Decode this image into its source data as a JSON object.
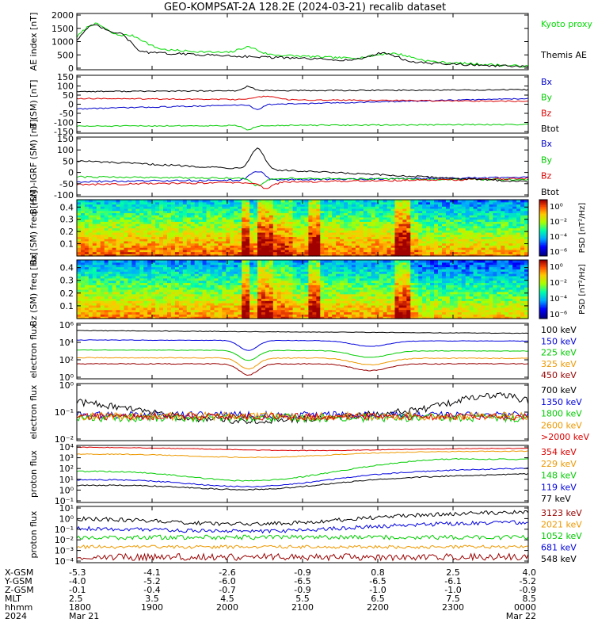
{
  "title": "GEO-KOMPSAT-2A 128.2E (2024-03-21) recalib dataset",
  "time_axis": {
    "rows": [
      {
        "label": "X-GSM",
        "values": [
          "-5.3",
          "-4.1",
          "-2.6",
          "-0.9",
          "0.8",
          "2.5",
          "4.0"
        ]
      },
      {
        "label": "Y-GSM",
        "values": [
          "-4.0",
          "-5.2",
          "-6.0",
          "-6.5",
          "-6.5",
          "-6.1",
          "-5.2"
        ]
      },
      {
        "label": "Z-GSM",
        "values": [
          "-0.1",
          "-0.4",
          "-0.7",
          "-0.9",
          "-1.0",
          "-1.0",
          "-0.9"
        ]
      },
      {
        "label": "MLT",
        "values": [
          "2.5",
          "3.5",
          "4.5",
          "5.5",
          "6.5",
          "7.5",
          "8.5"
        ]
      },
      {
        "label": "hhmm",
        "values": [
          "1800",
          "1900",
          "2000",
          "2100",
          "2200",
          "2300",
          "0000"
        ]
      },
      {
        "label": "2024",
        "values": [
          "Mar 21",
          "",
          "",
          "",
          "",
          "",
          "Mar 22"
        ]
      }
    ]
  },
  "chart_data": [
    {
      "type": "line",
      "ylabel": "AE index [nT]",
      "yticks": [
        "0",
        "500",
        "1000",
        "1500",
        "2000"
      ],
      "series": [
        {
          "name": "Kyoto proxy AE",
          "color": "#00dd00"
        },
        {
          "name": "Themis AE",
          "color": "#000000"
        }
      ]
    },
    {
      "type": "line",
      "ylabel": "B (SM) [nT]",
      "yticks": [
        "-150",
        "-100",
        "-50",
        "0",
        "50",
        "100",
        "150"
      ],
      "series": [
        {
          "name": "Bx",
          "color": "#0000cc"
        },
        {
          "name": "By",
          "color": "#00cc00"
        },
        {
          "name": "Bz",
          "color": "#dd0000"
        },
        {
          "name": "Btot",
          "color": "#000000"
        }
      ]
    },
    {
      "type": "line",
      "ylabel": "B (SM)-IGRF (SM) [nT]",
      "yticks": [
        "-100",
        "-50",
        "0",
        "50",
        "100",
        "150"
      ],
      "series": [
        {
          "name": "Bx",
          "color": "#0000cc"
        },
        {
          "name": "By",
          "color": "#00cc00"
        },
        {
          "name": "Bz",
          "color": "#dd0000"
        },
        {
          "name": "Btot",
          "color": "#000000"
        }
      ]
    },
    {
      "type": "heatmap",
      "ylabel": "Bx (SM) freq [Hz]",
      "yticks": [
        "0.1",
        "0.2",
        "0.3",
        "0.4"
      ],
      "colorbar": {
        "label": "PSD [nT²/Hz]",
        "ticks": [
          "10⁰",
          "10⁻²",
          "10⁻⁴",
          "10⁻⁶"
        ]
      }
    },
    {
      "type": "heatmap",
      "ylabel": "Bz (SM) freq [Hz]",
      "yticks": [
        "0.1",
        "0.2",
        "0.3",
        "0.4"
      ],
      "colorbar": {
        "label": "PSD [nT²/Hz]",
        "ticks": [
          "10⁰",
          "10⁻²",
          "10⁻⁴",
          "10⁻⁶"
        ]
      }
    },
    {
      "type": "line",
      "ylabel": "electron flux",
      "yticks": [
        "10⁰",
        "10²",
        "10⁴",
        "10⁶"
      ],
      "series": [
        {
          "name": "100 keV",
          "color": "#000000"
        },
        {
          "name": "150 keV",
          "color": "#0000dd"
        },
        {
          "name": "225 keV",
          "color": "#00cc00"
        },
        {
          "name": "325 keV",
          "color": "#ee9900"
        },
        {
          "name": "450 keV",
          "color": "#990000"
        }
      ]
    },
    {
      "type": "line",
      "ylabel": "electron flux",
      "yticks": [
        "10⁻²",
        "10⁻¹",
        "10⁰"
      ],
      "series": [
        {
          "name": "700 keV",
          "color": "#000000"
        },
        {
          "name": "1350 keV",
          "color": "#0000dd"
        },
        {
          "name": "1800 keV",
          "color": "#00cc00"
        },
        {
          "name": "2600 keV",
          "color": "#ee9900"
        },
        {
          "name": ">2000 keV",
          "color": "#dd0000"
        }
      ]
    },
    {
      "type": "line",
      "ylabel": "proton flux",
      "yticks": [
        "10⁻¹",
        "10⁰",
        "10¹",
        "10²",
        "10³",
        "10⁴"
      ],
      "series": [
        {
          "name": "354 keV",
          "color": "#dd0000"
        },
        {
          "name": "229 keV",
          "color": "#ee9900"
        },
        {
          "name": "148 keV",
          "color": "#00cc00"
        },
        {
          "name": "119 keV",
          "color": "#0000dd"
        },
        {
          "name": "77 keV",
          "color": "#000000"
        }
      ]
    },
    {
      "type": "line",
      "ylabel": "proton flux",
      "yticks": [
        "10⁻⁴",
        "10⁻³",
        "10⁻²",
        "10⁻¹",
        "10⁰",
        "10¹"
      ],
      "series": [
        {
          "name": "3123 keV",
          "color": "#990000"
        },
        {
          "name": "2021 keV",
          "color": "#ee9900"
        },
        {
          "name": "1052 keV",
          "color": "#00cc00"
        },
        {
          "name": "681 keV",
          "color": "#0000dd"
        },
        {
          "name": "548 keV",
          "color": "#000000"
        }
      ]
    }
  ]
}
